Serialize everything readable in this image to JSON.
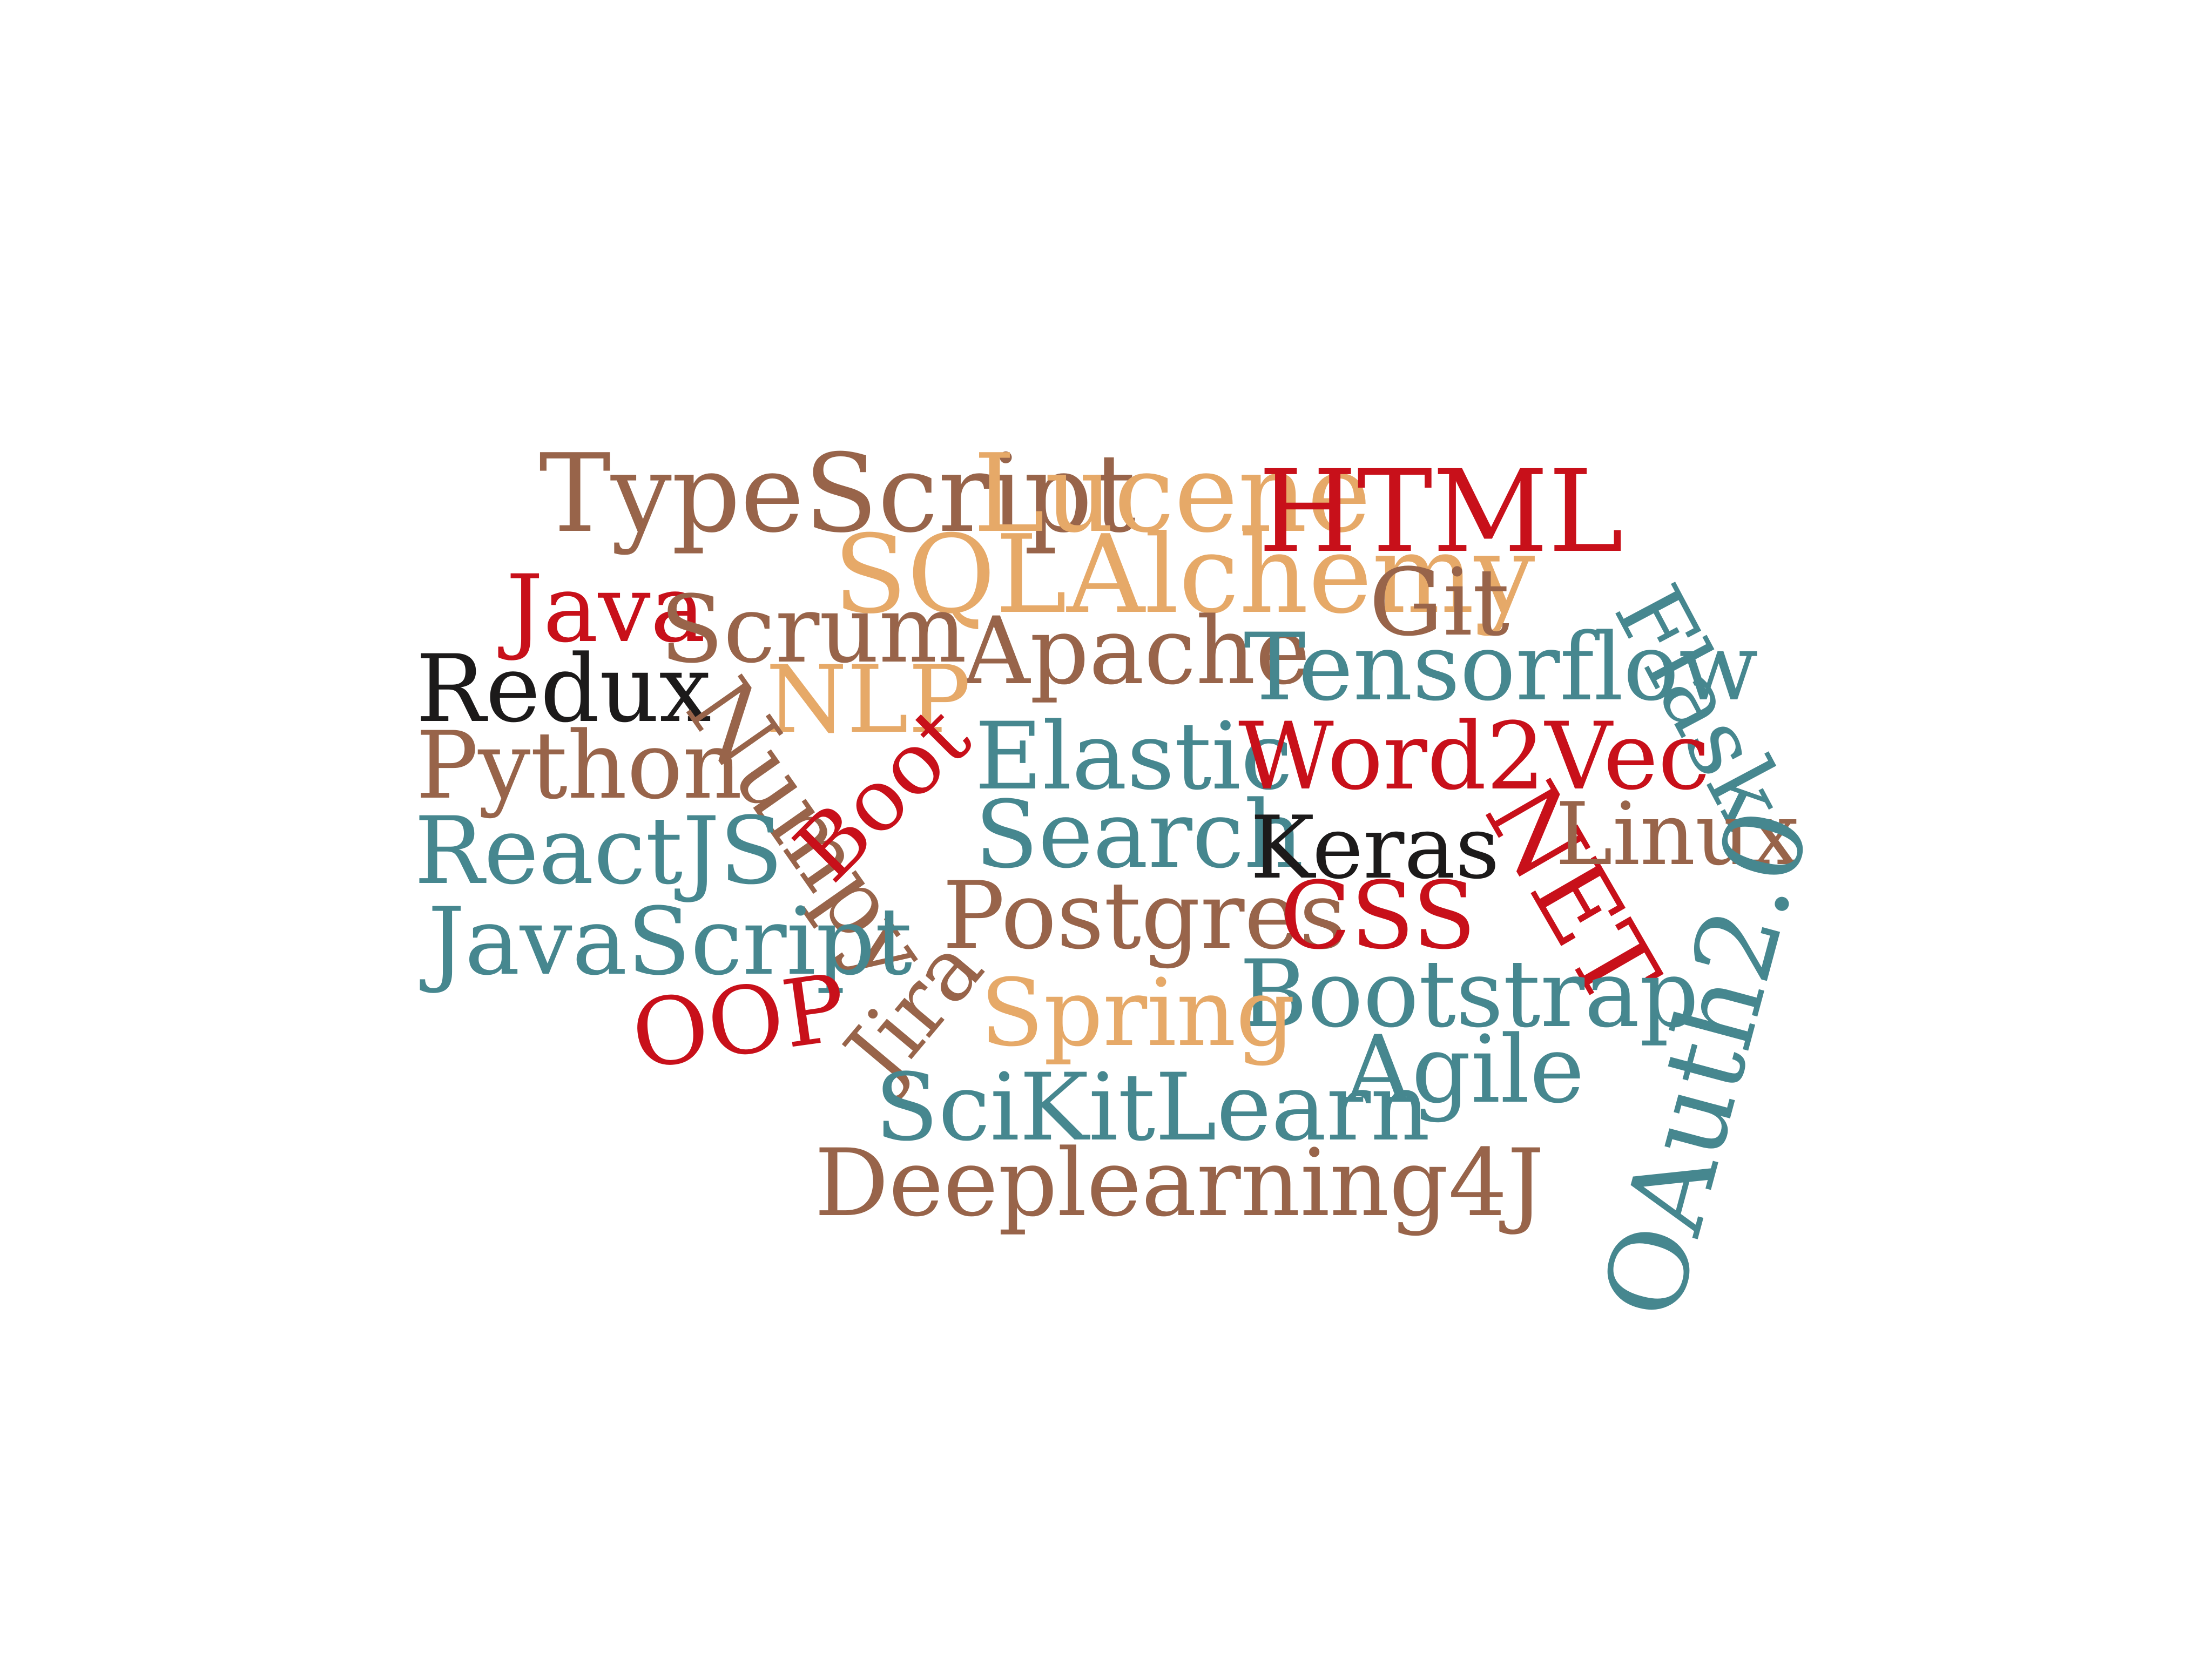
{
  "palette": {
    "brown": "#98644a",
    "gold": "#e6a968",
    "red": "#c8101a",
    "teal": "#46878f",
    "black": "#1c1a1a"
  },
  "words": [
    {
      "text": "TypeScript",
      "color": "#98644a"
    },
    {
      "text": "Lucene",
      "color": "#e6a968"
    },
    {
      "text": "HTML",
      "color": "#c8101a"
    },
    {
      "text": "SQLAlchemy",
      "color": "#e6a968"
    },
    {
      "text": "Java",
      "color": "#c8101a"
    },
    {
      "text": "Scrum",
      "color": "#98644a"
    },
    {
      "text": "Git",
      "color": "#98644a"
    },
    {
      "text": "Apache",
      "color": "#98644a"
    },
    {
      "text": "Tensorflow",
      "color": "#46878f"
    },
    {
      "text": "Flask",
      "color": "#46878f"
    },
    {
      "text": "Redux",
      "color": "#1c1a1a"
    },
    {
      "text": "NLP",
      "color": "#e6a968"
    },
    {
      "text": "Python",
      "color": "#98644a"
    },
    {
      "text": "Elastic",
      "color": "#46878f"
    },
    {
      "text": "Word2Vec",
      "color": "#c8101a"
    },
    {
      "text": "Numpy",
      "color": "#98644a"
    },
    {
      "text": "Boot",
      "color": "#c8101a"
    },
    {
      "text": "ReactJS",
      "color": "#46878f"
    },
    {
      "text": "Search",
      "color": "#46878f"
    },
    {
      "text": "Keras",
      "color": "#1c1a1a"
    },
    {
      "text": "NET",
      "color": "#c8101a"
    },
    {
      "text": "Linux",
      "color": "#98644a"
    },
    {
      "text": "Postgres",
      "color": "#98644a"
    },
    {
      "text": "CSS",
      "color": "#c8101a"
    },
    {
      "text": "JavaScript",
      "color": "#46878f"
    },
    {
      "text": "OAuth2.0",
      "color": "#46878f"
    },
    {
      "text": "Jira",
      "color": "#98644a"
    },
    {
      "text": "Bootstrap",
      "color": "#46878f"
    },
    {
      "text": "Spring",
      "color": "#e6a968"
    },
    {
      "text": "OOP",
      "color": "#c8101a"
    },
    {
      "text": "Agile",
      "color": "#46878f"
    },
    {
      "text": "SciKitLearn",
      "color": "#46878f"
    },
    {
      "text": "Deeplearning4J",
      "color": "#98644a"
    }
  ]
}
